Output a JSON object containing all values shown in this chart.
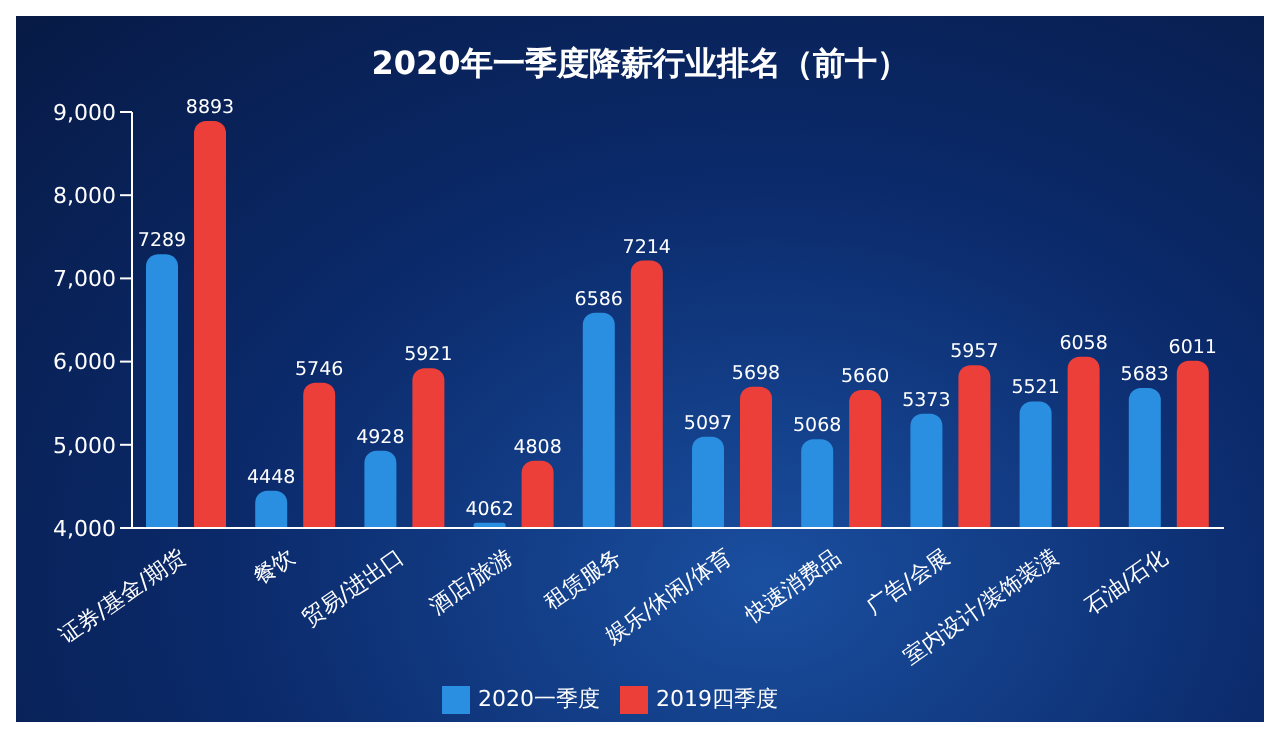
{
  "chart_data": {
    "type": "bar",
    "title": "2020年一季度降薪行业排名（前十）",
    "categories": [
      "证券/基金/期货",
      "餐饮",
      "贸易/进出口",
      "酒店/旅游",
      "租赁服务",
      "娱乐/休闲/体育",
      "快速消费品",
      "广告/会展",
      "室内设计/装饰装潢",
      "石油/石化"
    ],
    "series": [
      {
        "name": "2020一季度",
        "color": "#2a8fe0",
        "values": [
          7289,
          4448,
          4928,
          4062,
          6586,
          5097,
          5068,
          5373,
          5521,
          5683
        ]
      },
      {
        "name": "2019四季度",
        "color": "#ec3f3a",
        "values": [
          8893,
          5746,
          5921,
          4808,
          7214,
          5698,
          5660,
          5957,
          6058,
          6011
        ]
      }
    ],
    "ylim": [
      4000,
      9000
    ],
    "yticks": [
      {
        "value": 4000,
        "label": "4,000"
      },
      {
        "value": 5000,
        "label": "5,000"
      },
      {
        "value": 6000,
        "label": "6,000"
      },
      {
        "value": 7000,
        "label": "7,000"
      },
      {
        "value": 8000,
        "label": "8,000"
      },
      {
        "value": 9000,
        "label": "9,000"
      }
    ],
    "grid": false,
    "legend": "bottom",
    "data_labels": true
  }
}
